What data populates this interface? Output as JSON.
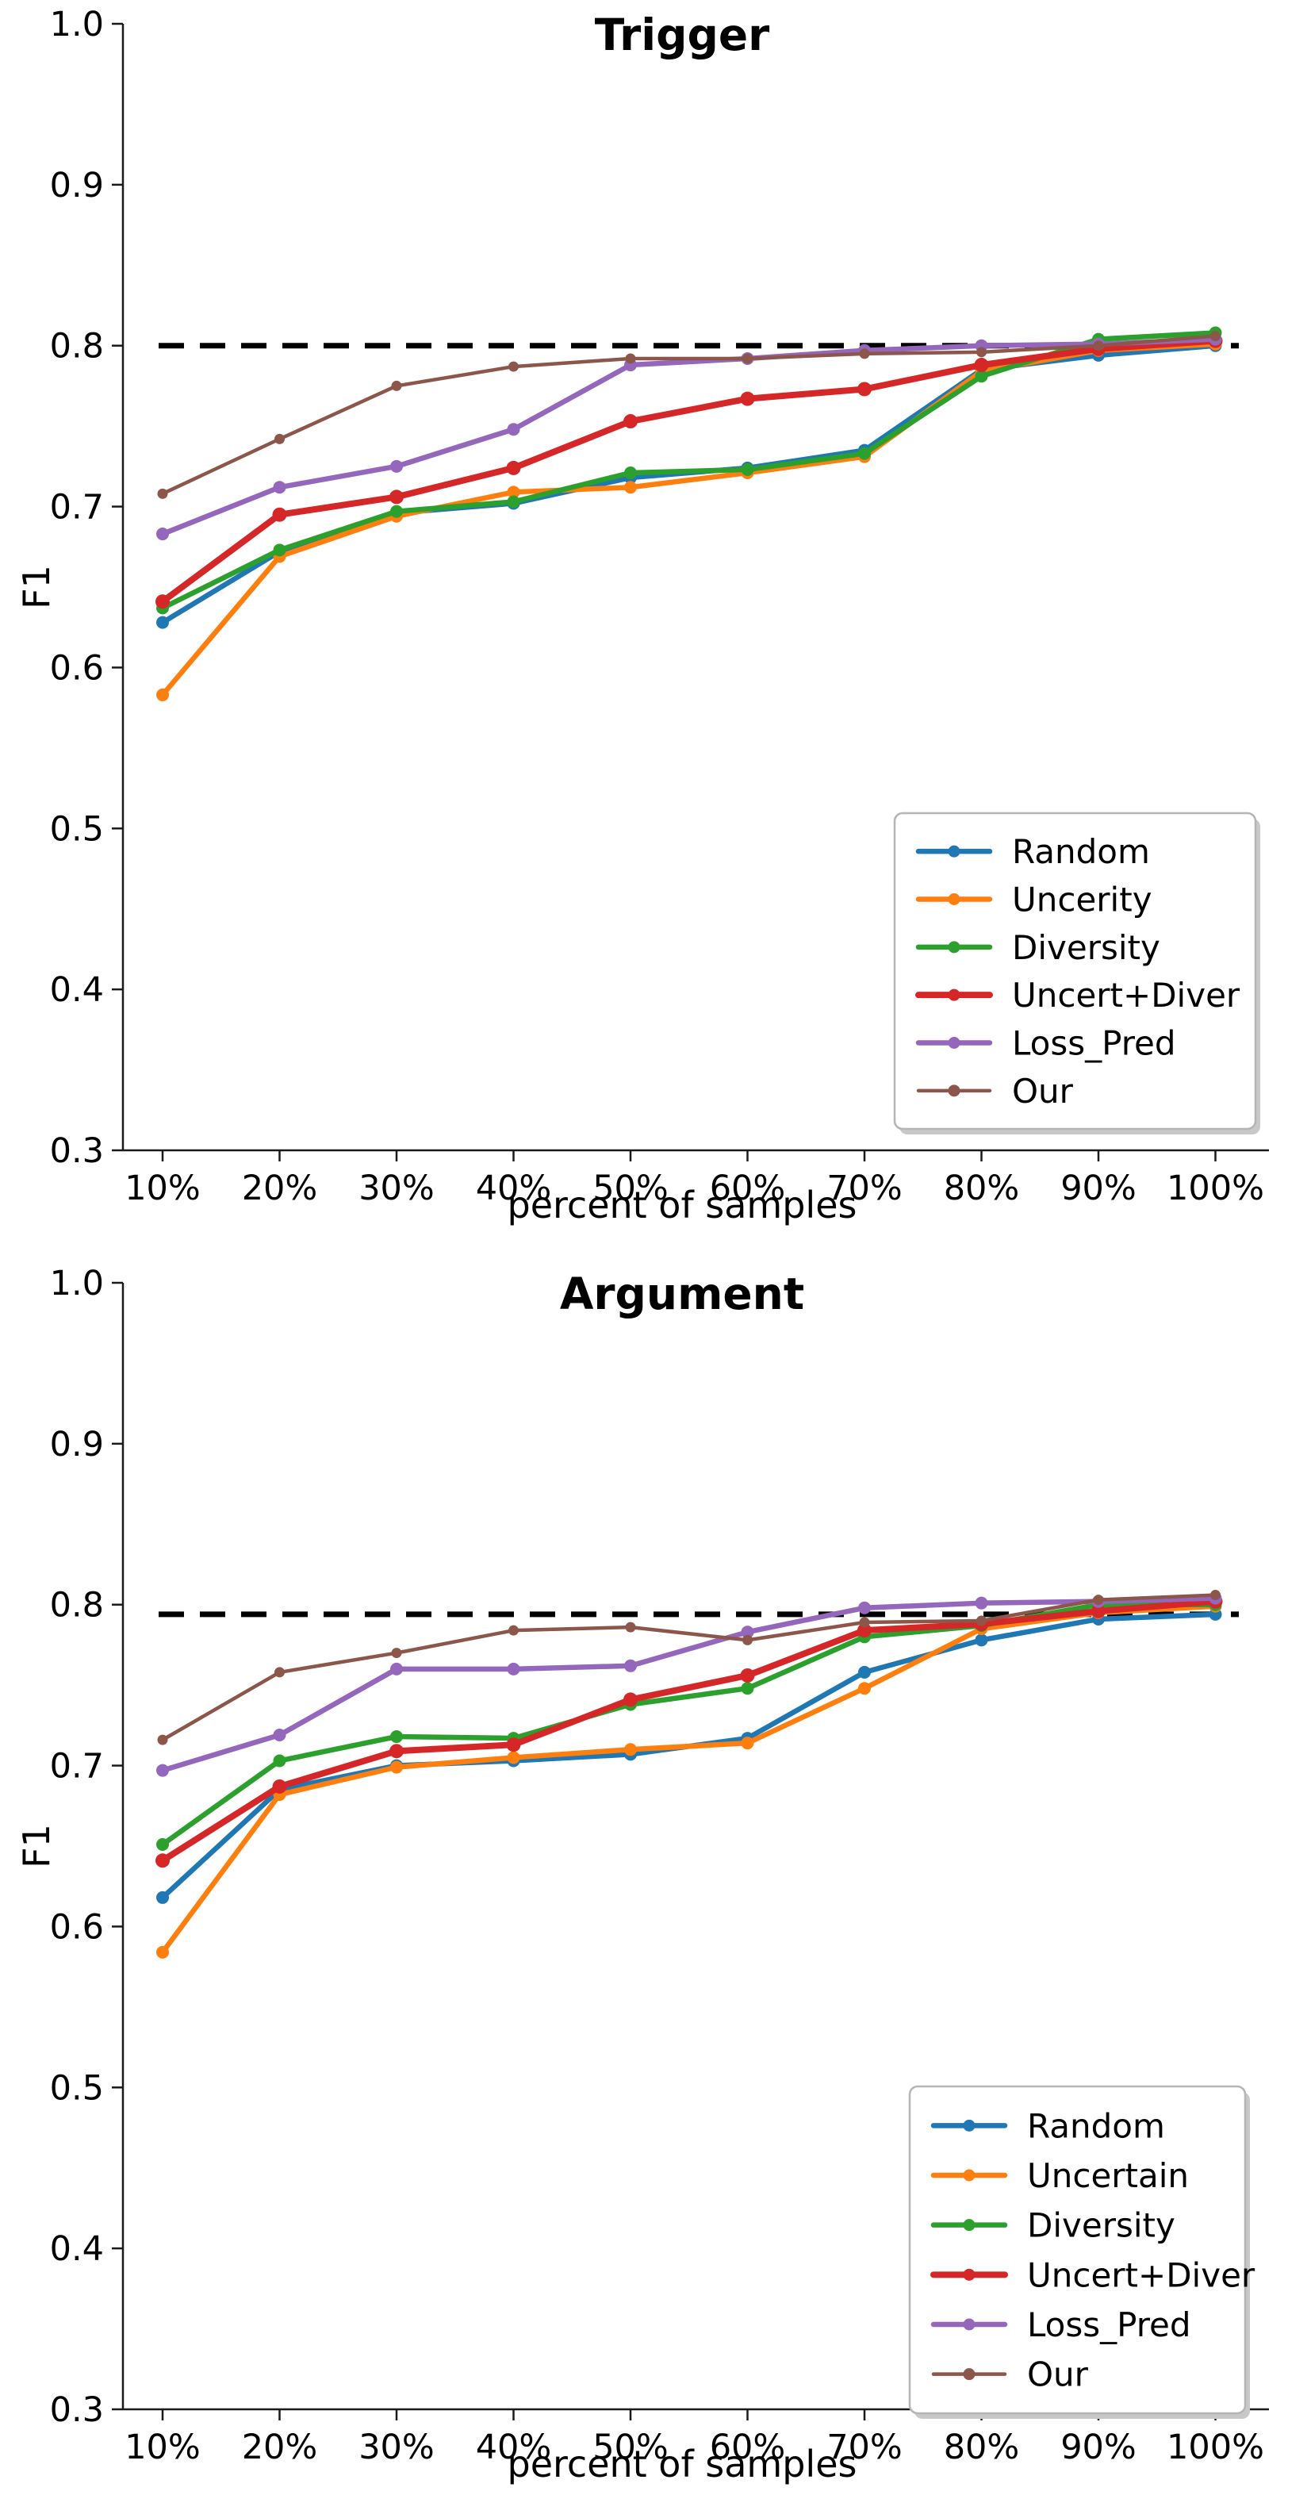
{
  "page": {
    "background": "#ffffff"
  },
  "chart_data": [
    {
      "type": "line",
      "title": "Trigger",
      "xlabel": "percent of samples",
      "ylabel": "F1",
      "categories": [
        "10%",
        "20%",
        "30%",
        "40%",
        "50%",
        "60%",
        "70%",
        "80%",
        "90%",
        "100%"
      ],
      "ylim": [
        0.3,
        1.0
      ],
      "yticks": [
        "1.0",
        "0.9",
        "0.8",
        "0.7",
        "0.6",
        "0.5",
        "0.4",
        "0.3"
      ],
      "grid": false,
      "legend_position": "lower right",
      "baseline": {
        "value": 0.8,
        "style": "dashed",
        "color": "#000000"
      },
      "series": [
        {
          "name": "Random",
          "color": "#1f77b4",
          "values": [
            0.628,
            0.672,
            0.696,
            0.702,
            0.718,
            0.724,
            0.735,
            0.785,
            0.794,
            0.8
          ]
        },
        {
          "name": "Uncerity",
          "color": "#ff7f0e",
          "values": [
            0.583,
            0.669,
            0.694,
            0.709,
            0.712,
            0.721,
            0.731,
            0.784,
            0.797,
            0.801
          ]
        },
        {
          "name": "Diversity",
          "color": "#2ca02c",
          "values": [
            0.637,
            0.673,
            0.697,
            0.703,
            0.721,
            0.723,
            0.733,
            0.781,
            0.804,
            0.808
          ]
        },
        {
          "name": "Uncert+Diver",
          "color": "#d62728",
          "values": [
            0.641,
            0.695,
            0.706,
            0.724,
            0.753,
            0.767,
            0.773,
            0.788,
            0.798,
            0.803
          ]
        },
        {
          "name": "Loss_Pred",
          "color": "#9467bd",
          "values": [
            0.683,
            0.712,
            0.725,
            0.748,
            0.788,
            0.792,
            0.797,
            0.8,
            0.801,
            0.804
          ]
        },
        {
          "name": "Our",
          "color": "#8c564b",
          "values": [
            0.708,
            0.742,
            0.775,
            0.787,
            0.792,
            0.792,
            0.795,
            0.796,
            0.8,
            0.806
          ]
        }
      ]
    },
    {
      "type": "line",
      "title": "Argument",
      "xlabel": "percent of samples",
      "ylabel": "F1",
      "categories": [
        "10%",
        "20%",
        "30%",
        "40%",
        "50%",
        "60%",
        "70%",
        "80%",
        "90%",
        "100%"
      ],
      "ylim": [
        0.3,
        1.0
      ],
      "yticks": [
        "1.0",
        "0.9",
        "0.8",
        "0.7",
        "0.6",
        "0.5",
        "0.4",
        "0.3"
      ],
      "grid": false,
      "legend_position": "lower right",
      "baseline": {
        "value": 0.794,
        "style": "dashed",
        "color": "#000000"
      },
      "series": [
        {
          "name": "Random",
          "color": "#1f77b4",
          "values": [
            0.618,
            0.685,
            0.7,
            0.703,
            0.707,
            0.717,
            0.758,
            0.778,
            0.791,
            0.794
          ]
        },
        {
          "name": "Uncertain",
          "color": "#ff7f0e",
          "values": [
            0.584,
            0.682,
            0.699,
            0.705,
            0.71,
            0.714,
            0.748,
            0.785,
            0.795,
            0.799
          ]
        },
        {
          "name": "Diversity",
          "color": "#2ca02c",
          "values": [
            0.651,
            0.703,
            0.718,
            0.717,
            0.738,
            0.748,
            0.78,
            0.787,
            0.8,
            0.8
          ]
        },
        {
          "name": "Uncert+Diver",
          "color": "#d62728",
          "values": [
            0.641,
            0.687,
            0.709,
            0.713,
            0.741,
            0.756,
            0.784,
            0.788,
            0.796,
            0.802
          ]
        },
        {
          "name": "Loss_Pred",
          "color": "#9467bd",
          "values": [
            0.697,
            0.719,
            0.76,
            0.76,
            0.762,
            0.783,
            0.798,
            0.801,
            0.802,
            0.804
          ]
        },
        {
          "name": "Our",
          "color": "#8c564b",
          "values": [
            0.716,
            0.758,
            0.77,
            0.784,
            0.786,
            0.778,
            0.789,
            0.79,
            0.803,
            0.806
          ]
        }
      ]
    }
  ]
}
